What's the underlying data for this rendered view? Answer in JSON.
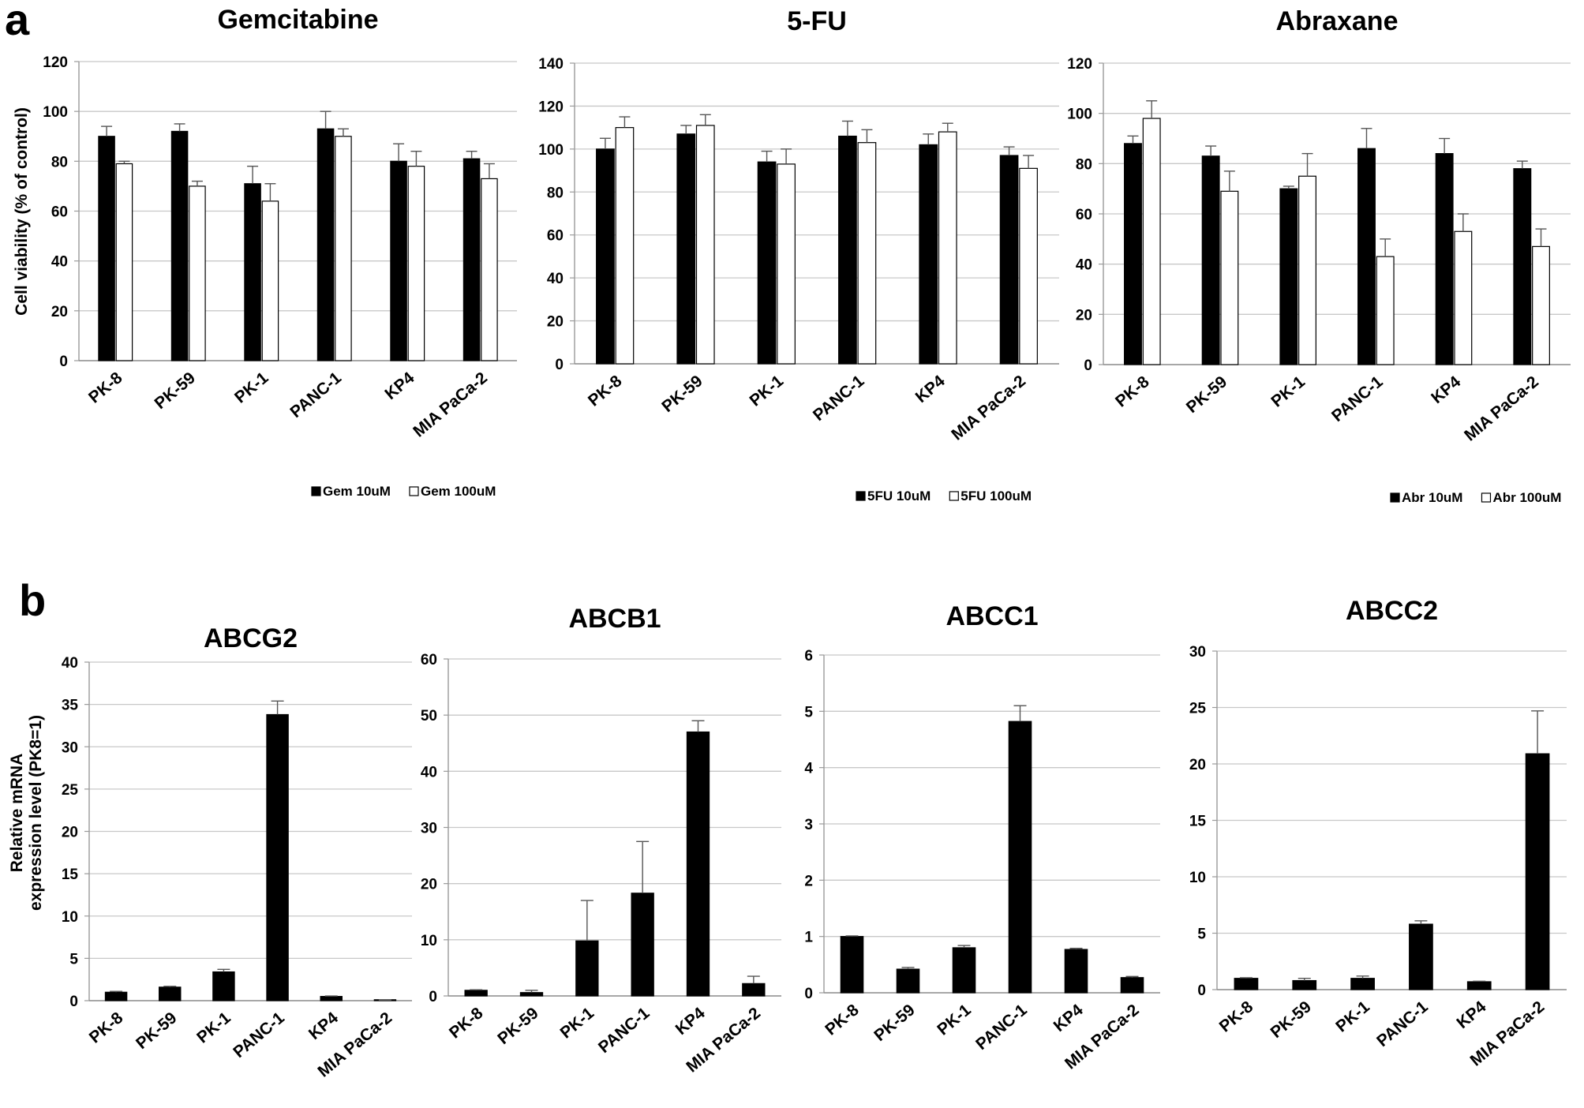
{
  "panels": [
    {
      "label": "a"
    },
    {
      "label": "b"
    }
  ],
  "chart_data": [
    {
      "type": "bar",
      "title": "Gemcitabine",
      "categories": [
        "PK-8",
        "PK-59",
        "PK-1",
        "PANC-1",
        "KP4",
        "MIA PaCa-2"
      ],
      "series": [
        {
          "name": "Gem  10uM",
          "color": "#000000",
          "values": [
            90,
            92,
            71,
            93,
            80,
            81
          ],
          "errors": [
            4,
            3,
            7,
            7,
            7,
            3
          ]
        },
        {
          "name": "Gem  100uM",
          "color": "#ffffff",
          "values": [
            79,
            70,
            64,
            90,
            78,
            73
          ],
          "errors": [
            1,
            2,
            7,
            3,
            6,
            6
          ]
        }
      ],
      "ylabel": "Cell viability (% of control)",
      "xlabel": "",
      "ylim": [
        0,
        120
      ],
      "yticks": [
        0,
        20,
        40,
        60,
        80,
        100,
        120
      ],
      "grid": true,
      "legend_position": "bottom-right"
    },
    {
      "type": "bar",
      "title": "5-FU",
      "categories": [
        "PK-8",
        "PK-59",
        "PK-1",
        "PANC-1",
        "KP4",
        "MIA PaCa-2"
      ],
      "series": [
        {
          "name": "5FU 10uM",
          "color": "#000000",
          "values": [
            100,
            107,
            94,
            106,
            102,
            97
          ],
          "errors": [
            5,
            4,
            5,
            7,
            5,
            4
          ]
        },
        {
          "name": "5FU 100uM",
          "color": "#ffffff",
          "values": [
            110,
            111,
            93,
            103,
            108,
            91
          ],
          "errors": [
            5,
            5,
            7,
            6,
            4,
            6
          ]
        }
      ],
      "ylabel": "",
      "xlabel": "",
      "ylim": [
        0,
        140
      ],
      "yticks": [
        0,
        20,
        40,
        60,
        80,
        100,
        120,
        140
      ],
      "grid": true,
      "legend_position": "bottom-right"
    },
    {
      "type": "bar",
      "title": "Abraxane",
      "categories": [
        "PK-8",
        "PK-59",
        "PK-1",
        "PANC-1",
        "KP4",
        "MIA PaCa-2"
      ],
      "series": [
        {
          "name": "Abr 10uM",
          "color": "#000000",
          "values": [
            88,
            83,
            70,
            86,
            84,
            78
          ],
          "errors": [
            3,
            4,
            1,
            8,
            6,
            3
          ]
        },
        {
          "name": "Abr 100uM",
          "color": "#ffffff",
          "values": [
            98,
            69,
            75,
            43,
            53,
            47
          ],
          "errors": [
            7,
            8,
            9,
            7,
            7,
            7
          ]
        }
      ],
      "ylabel": "",
      "xlabel": "",
      "ylim": [
        0,
        120
      ],
      "yticks": [
        0,
        20,
        40,
        60,
        80,
        100,
        120
      ],
      "grid": true,
      "legend_position": "bottom-right"
    },
    {
      "type": "bar",
      "title": "ABCG2",
      "categories": [
        "PK-8",
        "PK-59",
        "PK-1",
        "PANC-1",
        "KP4",
        "MIA PaCa-2"
      ],
      "series": [
        {
          "name": "ABCG2",
          "color": "#000000",
          "values": [
            1.0,
            1.6,
            3.4,
            33.8,
            0.5,
            0.05
          ],
          "errors": [
            0.1,
            0.1,
            0.3,
            1.6,
            0.05,
            0.02
          ]
        }
      ],
      "ylabel": "Relative mRNA expression level (PK8=1)",
      "xlabel": "",
      "ylim": [
        0,
        40
      ],
      "yticks": [
        0,
        5,
        10,
        15,
        20,
        25,
        30,
        35,
        40
      ],
      "grid": true
    },
    {
      "type": "bar",
      "title": "ABCB1",
      "categories": [
        "PK-8",
        "PK-59",
        "PK-1",
        "PANC-1",
        "KP4",
        "MIA PaCa-2"
      ],
      "series": [
        {
          "name": "ABCB1",
          "color": "#000000",
          "values": [
            1.0,
            0.6,
            9.8,
            18.3,
            47.0,
            2.2
          ],
          "errors": [
            0.1,
            0.4,
            7.2,
            9.2,
            2.0,
            1.3
          ]
        }
      ],
      "ylabel": "",
      "xlabel": "",
      "ylim": [
        0,
        60
      ],
      "yticks": [
        0,
        10,
        20,
        30,
        40,
        50,
        60
      ],
      "grid": true
    },
    {
      "type": "bar",
      "title": "ABCC1",
      "categories": [
        "PK-8",
        "PK-59",
        "PK-1",
        "PANC-1",
        "KP4",
        "MIA PaCa-2"
      ],
      "series": [
        {
          "name": "ABCC1",
          "color": "#000000",
          "values": [
            1.0,
            0.42,
            0.8,
            4.82,
            0.77,
            0.27
          ],
          "errors": [
            0.01,
            0.03,
            0.04,
            0.28,
            0.02,
            0.02
          ]
        }
      ],
      "ylabel": "",
      "xlabel": "",
      "ylim": [
        0,
        6
      ],
      "yticks": [
        0,
        1,
        2,
        3,
        4,
        5,
        6
      ],
      "grid": true
    },
    {
      "type": "bar",
      "title": "ABCC2",
      "categories": [
        "PK-8",
        "PK-59",
        "PK-1",
        "PANC-1",
        "KP4",
        "MIA PaCa-2"
      ],
      "series": [
        {
          "name": "ABCC2",
          "color": "#000000",
          "values": [
            1.0,
            0.8,
            1.0,
            5.8,
            0.7,
            20.9
          ],
          "errors": [
            0.05,
            0.2,
            0.2,
            0.3,
            0.05,
            3.8
          ]
        }
      ],
      "ylabel": "",
      "xlabel": "",
      "ylim": [
        0,
        30
      ],
      "yticks": [
        0,
        5,
        10,
        15,
        20,
        25,
        30
      ],
      "grid": true
    }
  ]
}
